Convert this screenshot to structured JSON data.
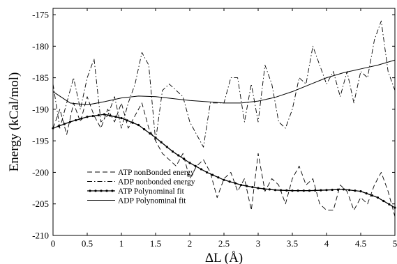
{
  "chart_data": {
    "type": "line",
    "xlabel": "ΔL (Å)",
    "ylabel": "Energy (kCal/mol)",
    "xlim": [
      0,
      5
    ],
    "ylim": [
      -210,
      -174
    ],
    "x_ticks": [
      0,
      0.5,
      1,
      1.5,
      2,
      2.5,
      3,
      3.5,
      4,
      4.5,
      5
    ],
    "x_tick_labels": [
      "0",
      "0.5",
      "1",
      "1.5",
      "2",
      "2.5",
      "3",
      "3.5",
      "4",
      "4.5",
      "5"
    ],
    "y_ticks": [
      -210,
      -205,
      -200,
      -195,
      -190,
      -185,
      -180,
      -175
    ],
    "y_tick_labels": [
      "-210",
      "-205",
      "-200",
      "-195",
      "-190",
      "-185",
      "-180",
      "-175"
    ],
    "grid": false,
    "legend_position": "lower-left",
    "series": [
      {
        "name": "ATP nonBonded energy",
        "style": "dashed",
        "color": "#000000",
        "x": [
          0,
          0.1,
          0.2,
          0.3,
          0.4,
          0.5,
          0.6,
          0.7,
          0.8,
          0.9,
          1.0,
          1.1,
          1.2,
          1.3,
          1.4,
          1.5,
          1.6,
          1.7,
          1.8,
          1.9,
          2.0,
          2.1,
          2.2,
          2.3,
          2.4,
          2.5,
          2.6,
          2.7,
          2.8,
          2.9,
          3.0,
          3.1,
          3.2,
          3.3,
          3.4,
          3.5,
          3.6,
          3.7,
          3.8,
          3.9,
          4.0,
          4.1,
          4.2,
          4.3,
          4.4,
          4.5,
          4.6,
          4.7,
          4.8,
          4.9,
          5.0
        ],
        "y": [
          -193,
          -190,
          -194,
          -189,
          -192,
          -188,
          -191,
          -193,
          -190,
          -192,
          -189,
          -193,
          -191,
          -189,
          -193,
          -195,
          -197,
          -198,
          -199,
          -197,
          -201,
          -199,
          -198,
          -200,
          -204,
          -201,
          -200,
          -203,
          -201,
          -206,
          -197,
          -203,
          -201,
          -202,
          -205,
          -201,
          -199,
          -202,
          -201,
          -205,
          -206,
          -206,
          -202,
          -203,
          -206,
          -204,
          -205,
          -202,
          -200,
          -203,
          -207
        ]
      },
      {
        "name": "ADP nonbonded energy",
        "style": "dash-dot",
        "color": "#000000",
        "x": [
          0,
          0.1,
          0.2,
          0.3,
          0.4,
          0.5,
          0.6,
          0.7,
          0.8,
          0.9,
          1.0,
          1.1,
          1.2,
          1.3,
          1.4,
          1.5,
          1.6,
          1.7,
          1.8,
          1.9,
          2.0,
          2.1,
          2.2,
          2.3,
          2.4,
          2.5,
          2.6,
          2.7,
          2.8,
          2.9,
          3.0,
          3.1,
          3.2,
          3.3,
          3.4,
          3.5,
          3.6,
          3.7,
          3.8,
          3.9,
          4.0,
          4.1,
          4.2,
          4.3,
          4.4,
          4.5,
          4.6,
          4.7,
          4.8,
          4.9,
          5.0
        ],
        "y": [
          -186,
          -193,
          -189,
          -185,
          -190,
          -185,
          -182,
          -192,
          -191,
          -188,
          -193,
          -189,
          -186,
          -181,
          -183,
          -195,
          -187,
          -186,
          -187,
          -188,
          -192,
          -194,
          -196,
          -189,
          -189,
          -189,
          -185,
          -185,
          -192,
          -186,
          -192,
          -183,
          -186,
          -192,
          -193,
          -190,
          -185,
          -186,
          -180,
          -183,
          -186,
          -184,
          -188,
          -184,
          -189,
          -184,
          -185,
          -179,
          -176,
          -184,
          -187
        ]
      },
      {
        "name": "ATP Polynominal fit",
        "style": "solid-markers",
        "color": "#000000",
        "x": [
          0,
          0.25,
          0.5,
          0.75,
          1.0,
          1.25,
          1.5,
          1.75,
          2.0,
          2.25,
          2.5,
          2.75,
          3.0,
          3.25,
          3.5,
          3.75,
          4.0,
          4.25,
          4.5,
          4.75,
          5.0
        ],
        "y": [
          -193,
          -192,
          -191.2,
          -190.8,
          -191.4,
          -192.5,
          -194.5,
          -196.7,
          -198.5,
          -200,
          -201.2,
          -202,
          -202.5,
          -202.8,
          -202.9,
          -202.9,
          -202.8,
          -202.7,
          -203,
          -204,
          -205.6
        ]
      },
      {
        "name": "ADP Polynominal fit",
        "style": "solid",
        "color": "#000000",
        "x": [
          0,
          0.25,
          0.5,
          0.75,
          1.0,
          1.25,
          1.5,
          1.75,
          2.0,
          2.25,
          2.5,
          2.75,
          3.0,
          3.25,
          3.5,
          3.75,
          4.0,
          4.25,
          4.5,
          4.75,
          5.0
        ],
        "y": [
          -187.2,
          -189,
          -189.3,
          -188.8,
          -188.2,
          -187.9,
          -188,
          -188.3,
          -188.6,
          -188.8,
          -189,
          -189,
          -188.7,
          -188.1,
          -187.2,
          -186.1,
          -185,
          -184.2,
          -183.6,
          -183,
          -182.2
        ]
      }
    ]
  }
}
